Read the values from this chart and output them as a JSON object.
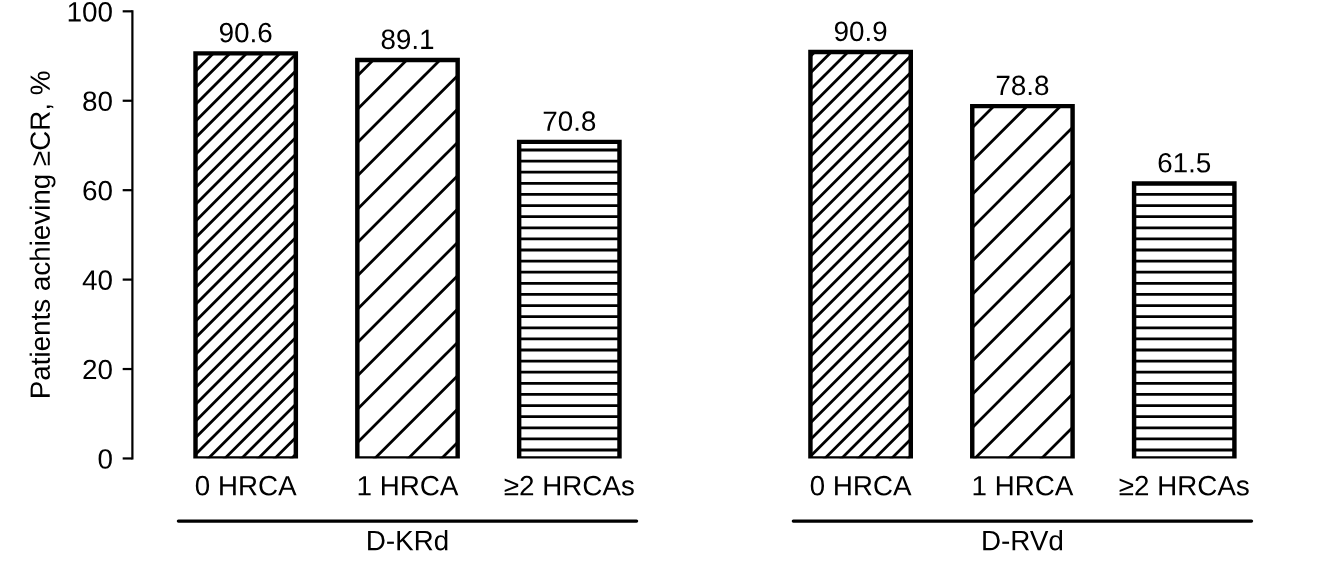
{
  "chart_data": {
    "type": "bar",
    "ylabel": "Patients achieving ≥CR, %",
    "categories": [
      "0 HRCA",
      "1 HRCA",
      "≥2 HRCAs",
      "0 HRCA",
      "1 HRCA",
      "≥2 HRCAs"
    ],
    "values": [
      90.6,
      89.1,
      70.8,
      90.9,
      78.8,
      61.5
    ],
    "color": "#000000",
    "data_labels": true,
    "annotations": [
      "D-KRd",
      "D-RVd"
    ],
    "ylim": [
      0,
      100
    ],
    "yticks": [
      0,
      20,
      40,
      60,
      80,
      100
    ],
    "grid": false,
    "legend": false
  }
}
